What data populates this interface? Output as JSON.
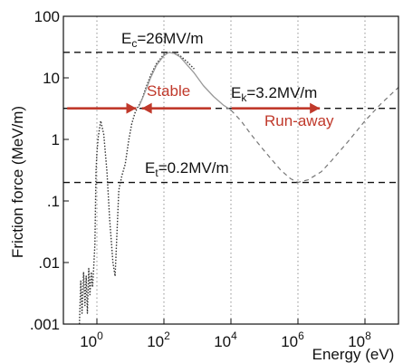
{
  "chart_data": {
    "type": "line",
    "title": "",
    "xlabel": "Energy (eV)",
    "ylabel": "Friction force (MeV/m)",
    "x_scale": "log",
    "y_scale": "log",
    "xlim": [
      0.1,
      1000000000
    ],
    "ylim": [
      0.001,
      100
    ],
    "x_ticks": [
      {
        "value": 1,
        "base": "10",
        "exp": "0"
      },
      {
        "value": 100,
        "base": "10",
        "exp": "2"
      },
      {
        "value": 10000,
        "base": "10",
        "exp": "4"
      },
      {
        "value": 1000000,
        "base": "10",
        "exp": "6"
      },
      {
        "value": 100000000,
        "base": "10",
        "exp": "8"
      }
    ],
    "y_ticks": [
      {
        "value": 0.001,
        "label": ".001"
      },
      {
        "value": 0.01,
        "label": ".01"
      },
      {
        "value": 0.1,
        "label": ".1"
      },
      {
        "value": 1,
        "label": "1"
      },
      {
        "value": 10,
        "label": "10"
      },
      {
        "value": 100,
        "label": "100"
      }
    ],
    "grid": "vertical dotted",
    "series": [
      {
        "style": "dotted",
        "x": [
          0.3,
          0.33,
          0.36,
          0.4,
          0.44,
          0.48,
          0.52,
          0.57,
          0.62,
          0.68,
          0.74,
          0.8,
          0.87,
          0.94,
          1.0,
          1.1,
          1.3,
          1.6,
          2.0,
          2.4,
          3.0,
          3.5,
          4.5,
          5.5,
          7,
          9,
          11,
          14,
          18,
          22,
          28,
          40,
          60,
          100,
          150,
          200,
          300,
          500,
          800
        ],
        "y": [
          0.001,
          0.005,
          0.0015,
          0.007,
          0.002,
          0.006,
          0.0015,
          0.008,
          0.003,
          0.007,
          0.004,
          0.008,
          0.02,
          0.3,
          0.6,
          1.1,
          2.0,
          1.2,
          0.3,
          0.05,
          0.01,
          0.006,
          0.15,
          0.25,
          0.4,
          1.0,
          1.8,
          2.8,
          3.6,
          4.5,
          6.5,
          11,
          17,
          24,
          26,
          25,
          23,
          18,
          14
        ]
      },
      {
        "style": "solid",
        "x": [
          18,
          25,
          40,
          60,
          100,
          140,
          200,
          300,
          500,
          800,
          1500,
          3000,
          6000,
          10000
        ],
        "y": [
          3.4,
          5.2,
          10,
          16,
          23,
          26,
          25,
          22,
          16,
          12,
          7.5,
          5,
          3.6,
          3.0
        ]
      },
      {
        "style": "dashed",
        "x": [
          10000,
          20000,
          40000,
          80000,
          150000,
          300000,
          600000,
          1000000,
          2000000,
          5000000,
          10000000,
          30000000,
          100000000,
          300000000,
          1000000000
        ],
        "y": [
          3.0,
          2.0,
          1.2,
          0.75,
          0.5,
          0.32,
          0.23,
          0.2,
          0.22,
          0.3,
          0.45,
          0.9,
          2.0,
          3.8,
          7
        ]
      }
    ],
    "thresholds": [
      {
        "value": 26,
        "label": "E",
        "sub": "c",
        "value_text": "=26MV/m"
      },
      {
        "value": 3.2,
        "label": "E",
        "sub": "k",
        "value_text": "=3.2MV/m"
      },
      {
        "value": 0.2,
        "label": "E",
        "sub": "t",
        "value_text": "=0.2MV/m"
      }
    ],
    "regions": [
      {
        "text": "Stable",
        "color": "#c0392b"
      },
      {
        "text": "Run-away",
        "color": "#c0392b"
      }
    ],
    "arrow_color": "#c0392b"
  }
}
